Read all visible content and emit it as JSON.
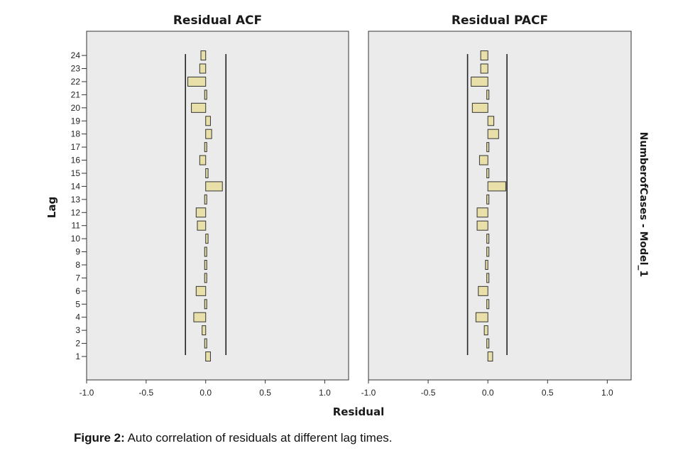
{
  "chart_data": {
    "type": "bar",
    "orientation": "horizontal",
    "ylabel": "Lag",
    "xlabel": "Residual",
    "side_label": "NumberofCases - Model_1",
    "lags": [
      1,
      2,
      3,
      4,
      5,
      6,
      7,
      8,
      9,
      10,
      11,
      12,
      13,
      14,
      15,
      16,
      17,
      18,
      19,
      20,
      21,
      22,
      23,
      24
    ],
    "xlim": [
      -1.0,
      1.2
    ],
    "xticks": [
      "-1.0",
      "-0.5",
      "0.0",
      "0.5",
      "1.0"
    ],
    "xtick_values": [
      -1.0,
      -0.5,
      0.0,
      0.5,
      1.0
    ],
    "grid": false,
    "bar_color": "#e8e0a8",
    "bar_edge_color": "#333333",
    "panel_bg": "#ebebeb",
    "panels": [
      {
        "title": "Residual ACF",
        "values": [
          0.04,
          0.0,
          -0.03,
          -0.1,
          -0.01,
          -0.08,
          0.0,
          -0.01,
          0.0,
          0.02,
          -0.07,
          -0.08,
          -0.01,
          0.14,
          0.02,
          -0.05,
          0.0,
          0.05,
          0.04,
          -0.12,
          0.0,
          -0.15,
          -0.05,
          -0.04
        ],
        "confidence_limits": [
          -0.17,
          0.17
        ]
      },
      {
        "title": "Residual PACF",
        "values": [
          0.04,
          0.0,
          -0.03,
          -0.1,
          -0.01,
          -0.08,
          0.0,
          -0.02,
          0.0,
          0.01,
          -0.09,
          -0.09,
          -0.01,
          0.15,
          0.0,
          -0.07,
          0.0,
          0.09,
          0.05,
          -0.13,
          0.01,
          -0.14,
          -0.06,
          -0.06
        ],
        "confidence_limits": [
          -0.17,
          0.16
        ]
      }
    ]
  },
  "caption": {
    "label": "Figure 2:",
    "text": " Auto correlation of residuals at different lag times."
  }
}
